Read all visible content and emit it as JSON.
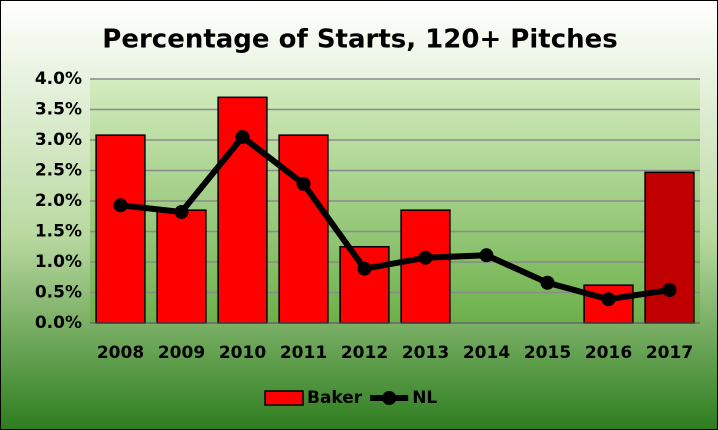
{
  "chart_data": {
    "type": "bar-line",
    "title": "Percentage of Starts, 120+ Pitches",
    "categories": [
      "2008",
      "2009",
      "2010",
      "2011",
      "2012",
      "2013",
      "2014",
      "2015",
      "2016",
      "2017"
    ],
    "series": [
      {
        "name": "Baker",
        "type": "bar",
        "color": "#ff0000",
        "point_colors": [
          "#ff0000",
          "#ff0000",
          "#ff0000",
          "#ff0000",
          "#ff0000",
          "#ff0000",
          "#ff0000",
          "#ff0000",
          "#ff0000",
          "#c00000"
        ],
        "values": [
          3.08,
          1.85,
          3.7,
          3.08,
          1.25,
          1.85,
          null,
          null,
          0.62,
          2.47
        ]
      },
      {
        "name": "NL",
        "type": "line",
        "color": "#000000",
        "values": [
          1.93,
          1.82,
          3.05,
          2.28,
          0.89,
          1.07,
          1.11,
          0.66,
          0.39,
          0.54
        ]
      }
    ],
    "ylim": [
      0,
      4
    ],
    "yticks": [
      {
        "value": 0,
        "label": "0.0%"
      },
      {
        "value": 0.5,
        "label": "0.5%"
      },
      {
        "value": 1,
        "label": "1.0%"
      },
      {
        "value": 1.5,
        "label": "1.5%"
      },
      {
        "value": 2,
        "label": "2.0%"
      },
      {
        "value": 2.5,
        "label": "2.5%"
      },
      {
        "value": 3,
        "label": "3.0%"
      },
      {
        "value": 3.5,
        "label": "3.5%"
      },
      {
        "value": 4,
        "label": "4.0%"
      }
    ],
    "grid": true,
    "legend": "bottom"
  }
}
